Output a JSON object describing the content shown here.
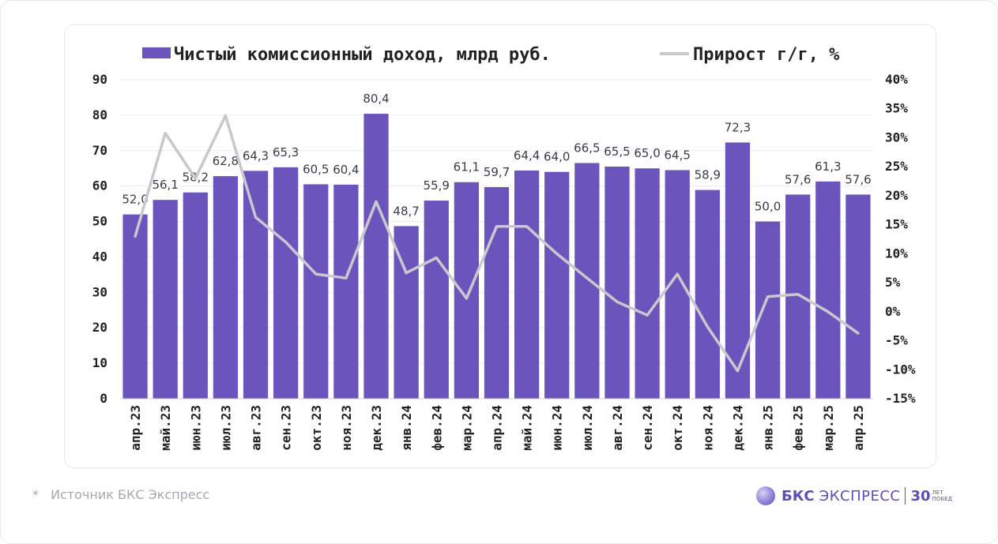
{
  "chart_data": {
    "type": "bar+line",
    "legend": {
      "bar_label": "Чистый комиссионный доход, млрд руб.",
      "line_label": "Прирост г/г, %",
      "placement": "top"
    },
    "categories": [
      "апр.23",
      "май.23",
      "июн.23",
      "июл.23",
      "авг.23",
      "сен.23",
      "окт.23",
      "ноя.23",
      "дек.23",
      "янв.24",
      "фев.24",
      "мар.24",
      "апр.24",
      "май.24",
      "июн.24",
      "июл.24",
      "авг.24",
      "сен.24",
      "окт.24",
      "ноя.24",
      "дек.24",
      "янв.25",
      "фев.25",
      "мар.25",
      "апр.25"
    ],
    "series": [
      {
        "name": "Чистый комиссионный доход, млрд руб.",
        "type": "bar",
        "axis": "left",
        "values": [
          52.0,
          56.1,
          58.2,
          62.8,
          64.3,
          65.3,
          60.5,
          60.4,
          80.4,
          48.7,
          55.9,
          61.1,
          59.7,
          64.4,
          64.0,
          66.5,
          65.5,
          65.0,
          64.5,
          58.9,
          72.3,
          50.0,
          57.6,
          61.3,
          57.6
        ],
        "labels": [
          "52,0",
          "56,1",
          "58,2",
          "62,8",
          "64,3",
          "65,3",
          "60,5",
          "60,4",
          "80,4",
          "48,7",
          "55,9",
          "61,1",
          "59,7",
          "64,4",
          "64,0",
          "66,5",
          "65,5",
          "65,0",
          "64,5",
          "58,9",
          "72,3",
          "50,0",
          "57,6",
          "61,3",
          "57,6"
        ]
      },
      {
        "name": "Прирост г/г, %",
        "type": "line",
        "axis": "right",
        "values": [
          13,
          30.8,
          23,
          33.8,
          16.3,
          12,
          6.5,
          5.8,
          19,
          6.7,
          9.3,
          2.3,
          14.7,
          14.7,
          10,
          5.8,
          1.7,
          -0.6,
          6.5,
          -2.6,
          -10.2,
          2.6,
          3,
          0,
          -3.7
        ]
      }
    ],
    "y_left": {
      "min": 0,
      "max": 90,
      "ticks": [
        "0",
        "10",
        "20",
        "30",
        "40",
        "50",
        "60",
        "70",
        "80",
        "90"
      ]
    },
    "y_right": {
      "min": -15,
      "max": 40,
      "ticks": [
        "-15%",
        "-10%",
        "-5%",
        "0%",
        "5%",
        "10%",
        "15%",
        "20%",
        "25%",
        "30%",
        "35%",
        "40%"
      ]
    },
    "grid": true,
    "colors": {
      "bar": "#6b54bb",
      "line": "#c8c8ce",
      "text": "#222222",
      "label": "#3a3a4a"
    }
  },
  "footer": {
    "footnote_star": "*",
    "footnote_text": "Источник БКС Экспресс",
    "brand_bks": "БКС",
    "brand_express": "ЭКСПРЕСС",
    "brand_years": "30",
    "brand_years_top": "ЛЕТ",
    "brand_years_bottom": "ПОБЕД"
  }
}
